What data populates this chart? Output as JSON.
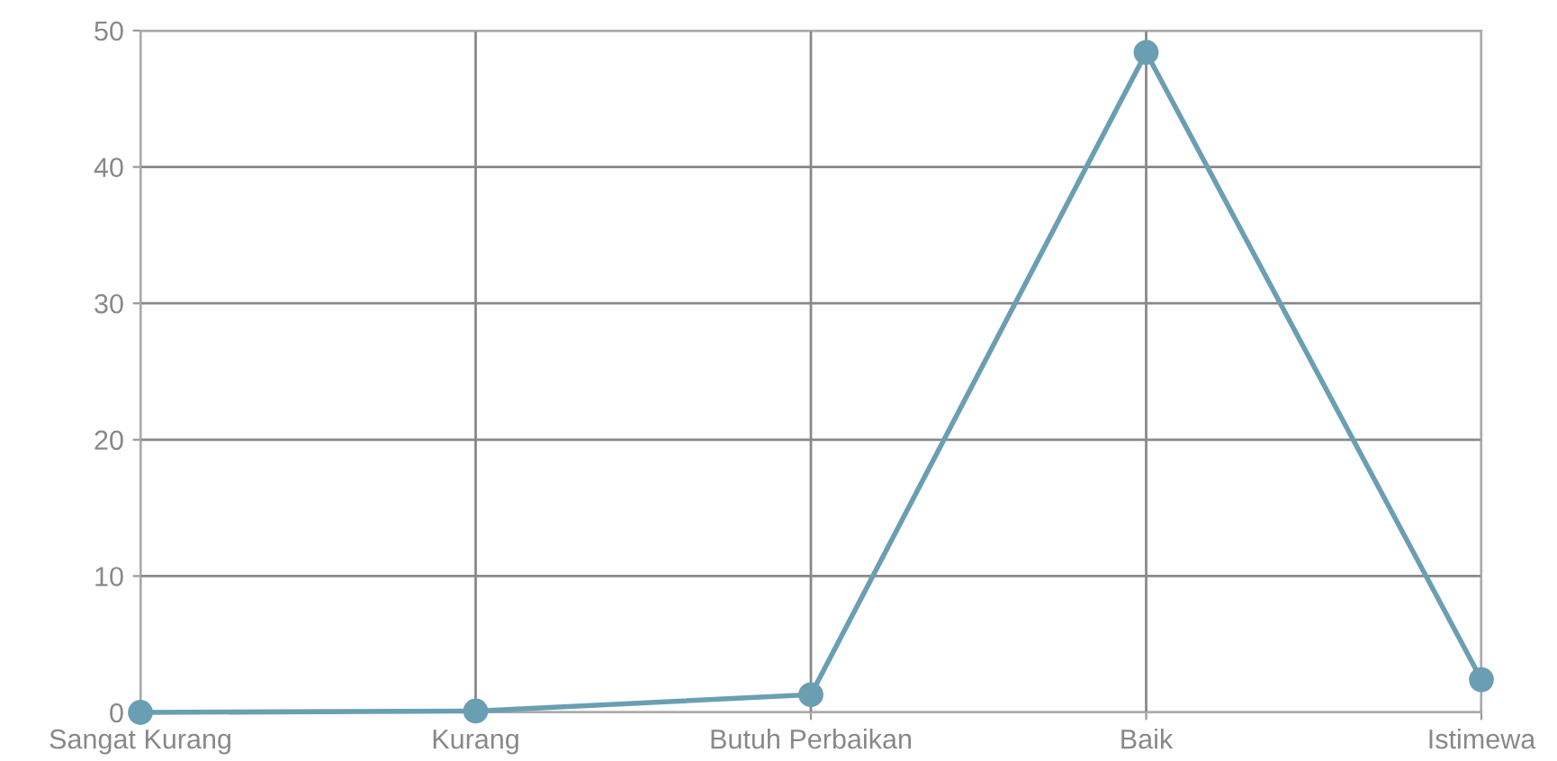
{
  "chart_data": {
    "type": "line",
    "categories": [
      "Sangat Kurang",
      "Kurang",
      "Butuh Perbaikan",
      "Baik",
      "Istimewa"
    ],
    "series": [
      {
        "color": "#6a9fb3",
        "values": [
          0,
          0.1,
          1.3,
          48.4,
          2.4
        ]
      }
    ],
    "ylim": [
      0,
      50
    ],
    "yticks": [
      0,
      10,
      20,
      30,
      40,
      50
    ],
    "grid": true,
    "marker": "circle",
    "line_style": "solid"
  }
}
